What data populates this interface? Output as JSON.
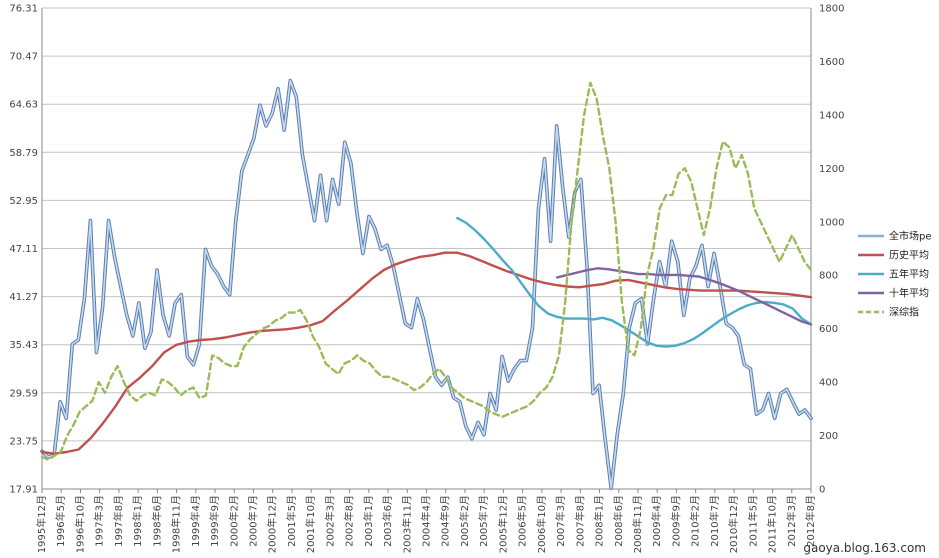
{
  "chart_data": {
    "type": "line",
    "title": "",
    "xlabel": "",
    "ylabel": "",
    "ylim": [
      17.91,
      76.31
    ],
    "y2lim": [
      0,
      1800
    ],
    "y_ticks": [
      "17.91",
      "23.75",
      "29.59",
      "35.43",
      "41.27",
      "47.11",
      "52.95",
      "58.79",
      "64.63",
      "70.47",
      "76.31"
    ],
    "y2_ticks": [
      "0",
      "200",
      "400",
      "600",
      "800",
      "1000",
      "1200",
      "1400",
      "1600",
      "1800"
    ],
    "x_labels": [
      "1995年12月",
      "1996年5月",
      "1996年10月",
      "1997年3月",
      "1997年8月",
      "1998年1月",
      "1998年6月",
      "1998年11月",
      "1999年4月",
      "1999年9月",
      "2000年2月",
      "2000年7月",
      "2000年12月",
      "2001年5月",
      "2001年10月",
      "2002年3月",
      "2002年8月",
      "2003年1月",
      "2003年6月",
      "2003年11月",
      "2004年4月",
      "2004年9月",
      "2005年2月",
      "2005年7月",
      "2005年12月",
      "2006年5月",
      "2006年10月",
      "2007年3月",
      "2007年8月",
      "2008年1月",
      "2008年6月",
      "2008年11月",
      "2009年4月",
      "2009年9月",
      "2010年2月",
      "2010年7月",
      "2010年12月",
      "2011年5月",
      "2011年10月",
      "2012年3月",
      "2012年8月"
    ],
    "grid": true,
    "legend": "right",
    "series": [
      {
        "name": "全市场pe",
        "axis": "left",
        "style": "solid",
        "color": "#8EAED6",
        "values": [
          22.5,
          21.8,
          22.0,
          28.5,
          26.5,
          35.5,
          36.0,
          41.0,
          50.5,
          34.5,
          40.0,
          50.5,
          46.0,
          42.5,
          39.0,
          36.5,
          40.5,
          35.0,
          37.0,
          44.5,
          39.0,
          36.5,
          40.5,
          41.5,
          34.0,
          33.0,
          35.5,
          47.0,
          45.0,
          44.0,
          42.5,
          41.5,
          50.5,
          56.5,
          58.5,
          60.5,
          64.5,
          62.0,
          63.5,
          66.5,
          61.5,
          67.5,
          65.5,
          58.5,
          54.5,
          50.5,
          56.0,
          50.5,
          55.5,
          52.5,
          60.0,
          57.5,
          51.5,
          46.5,
          51.0,
          49.5,
          47.0,
          47.5,
          45.0,
          41.5,
          38.0,
          37.5,
          41.0,
          38.5,
          35.0,
          31.5,
          30.5,
          31.5,
          29.0,
          28.5,
          25.5,
          24.0,
          26.0,
          24.5,
          29.5,
          27.5,
          34.0,
          31.0,
          32.5,
          33.5,
          33.5,
          37.5,
          52.0,
          58.0,
          48.0,
          62.0,
          54.5,
          48.5,
          54.0,
          55.5,
          45.0,
          29.5,
          30.5,
          24.0,
          18.0,
          24.5,
          29.5,
          37.5,
          40.5,
          41.0,
          35.5,
          41.0,
          45.5,
          42.5,
          48.0,
          45.5,
          39.0,
          43.5,
          45.0,
          47.5,
          42.5,
          46.5,
          42.5,
          38.0,
          37.5,
          36.5,
          33.0,
          32.5,
          27.0,
          27.5,
          29.5,
          26.5,
          29.5,
          30.0,
          28.5,
          27.0,
          27.5,
          26.5
        ]
      },
      {
        "name": "历史平均",
        "axis": "left",
        "style": "solid",
        "color": "#C0504D",
        "x_start": "1995年12月",
        "x_end": "2012年8月",
        "values": [
          22.4,
          22.2,
          22.4,
          22.7,
          24.1,
          25.9,
          27.9,
          30.2,
          31.4,
          32.8,
          34.5,
          35.4,
          35.8,
          36.0,
          36.1,
          36.3,
          36.6,
          36.9,
          37.1,
          37.2,
          37.3,
          37.5,
          37.8,
          38.3,
          39.6,
          40.8,
          42.1,
          43.4,
          44.5,
          45.2,
          45.7,
          46.1,
          46.3,
          46.6,
          46.6,
          46.2,
          45.6,
          45.0,
          44.4,
          43.9,
          43.4,
          43.0,
          42.7,
          42.5,
          42.4,
          42.6,
          42.8,
          43.2,
          43.3,
          43.0,
          42.7,
          42.4,
          42.2,
          42.1,
          42.0,
          42.0,
          42.0,
          42.0,
          41.9,
          41.8,
          41.7,
          41.6,
          41.4,
          41.2
        ]
      },
      {
        "name": "五年平均",
        "axis": "left",
        "style": "solid",
        "color": "#4BACC6",
        "x_start": "2004年12月",
        "x_end": "2012年8月",
        "values": [
          50.8,
          50.2,
          49.3,
          48.2,
          47.0,
          45.7,
          44.5,
          43.0,
          41.5,
          40.1,
          39.2,
          38.8,
          38.6,
          38.6,
          38.6,
          38.5,
          38.7,
          38.4,
          37.8,
          37.1,
          36.4,
          35.7,
          35.3,
          35.2,
          35.3,
          35.6,
          36.1,
          36.8,
          37.6,
          38.4,
          39.1,
          39.7,
          40.2,
          40.5,
          40.6,
          40.5,
          40.3,
          39.8,
          38.6,
          37.9
        ]
      },
      {
        "name": "十年平均",
        "axis": "left",
        "style": "solid",
        "color": "#8064A2",
        "x_start": "2007年2月",
        "x_end": "2012年8月",
        "values": [
          43.6,
          43.9,
          44.2,
          44.5,
          44.7,
          44.6,
          44.4,
          44.2,
          44.0,
          44.0,
          43.9,
          43.9,
          43.9,
          43.8,
          43.7,
          43.3,
          42.9,
          42.4,
          41.9,
          41.3,
          40.7,
          40.1,
          39.5,
          38.9,
          38.3,
          37.9
        ]
      },
      {
        "name": "深综指",
        "axis": "right",
        "style": "dashed",
        "color": "#9BBB59",
        "values": [
          120,
          110,
          125,
          140,
          200,
          240,
          290,
          310,
          330,
          400,
          360,
          420,
          460,
          400,
          350,
          330,
          350,
          360,
          350,
          410,
          400,
          380,
          350,
          370,
          380,
          340,
          350,
          500,
          490,
          470,
          460,
          460,
          530,
          560,
          580,
          600,
          610,
          630,
          640,
          660,
          660,
          670,
          630,
          570,
          530,
          470,
          450,
          430,
          470,
          480,
          500,
          480,
          470,
          440,
          420,
          420,
          410,
          400,
          390,
          370,
          380,
          400,
          430,
          450,
          420,
          380,
          360,
          340,
          330,
          320,
          310,
          290,
          280,
          270,
          280,
          290,
          300,
          310,
          330,
          360,
          380,
          420,
          500,
          700,
          1000,
          1200,
          1400,
          1520,
          1460,
          1320,
          1200,
          1000,
          700,
          520,
          500,
          600,
          800,
          900,
          1050,
          1100,
          1100,
          1180,
          1200,
          1150,
          1050,
          950,
          1050,
          1200,
          1300,
          1280,
          1200,
          1250,
          1180,
          1050,
          1000,
          950,
          900,
          850,
          900,
          950,
          900,
          850,
          820
        ]
      }
    ]
  },
  "legend": {
    "items": [
      {
        "label": "全市场pe",
        "color": "#8EAED6",
        "style": "solid"
      },
      {
        "label": "历史平均",
        "color": "#C0504D",
        "style": "solid"
      },
      {
        "label": "五年平均",
        "color": "#4BACC6",
        "style": "solid"
      },
      {
        "label": "十年平均",
        "color": "#8064A2",
        "style": "solid"
      },
      {
        "label": "深综指",
        "color": "#9BBB59",
        "style": "dashed"
      }
    ]
  },
  "watermark": "gaoya.blog.163.com"
}
